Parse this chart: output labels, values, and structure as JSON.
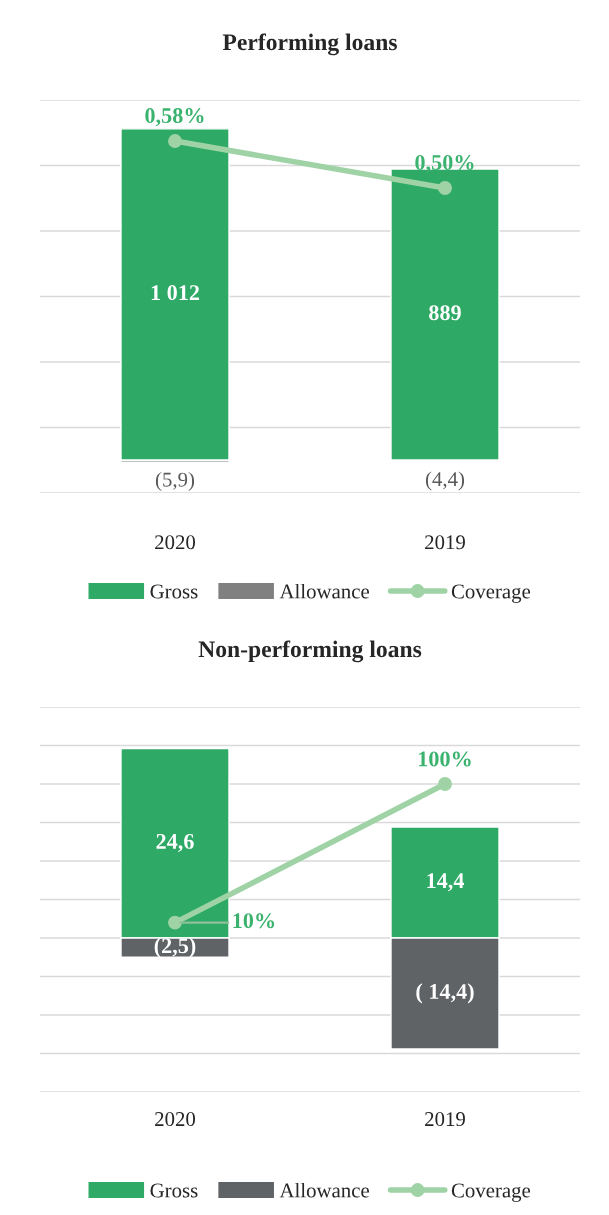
{
  "chart_data": [
    {
      "type": "bar",
      "title": "Performing loans",
      "categories": [
        "2020",
        "2019"
      ],
      "stacked": true,
      "grid": "y",
      "legend": "bottom",
      "tick_labels": "x",
      "ylim": [
        -100,
        1100
      ],
      "yticks": [
        {
          "value": -100,
          "label": null
        },
        {
          "value": 100,
          "label": null
        },
        {
          "value": 300,
          "label": null
        },
        {
          "value": 500,
          "label": null
        },
        {
          "value": 700,
          "label": null
        },
        {
          "value": 900,
          "label": null
        },
        {
          "value": 1100,
          "label": null
        }
      ],
      "y2lim": [
        -0.02,
        0.65
      ],
      "series": [
        {
          "name": "Gross",
          "color": "#2eaa66",
          "values": [
            1012,
            889
          ],
          "value_labels": [
            "1 012",
            "889"
          ]
        },
        {
          "name": "Allowance",
          "color": "#808080",
          "values": [
            -5.9,
            -4.4
          ],
          "value_labels": [
            "(5,9)",
            "(4,4)"
          ]
        },
        {
          "name": "Coverage",
          "type": "line",
          "axis": "y2",
          "marker": "circle",
          "color": "#9fd3a6",
          "values": [
            0.58,
            0.5
          ],
          "value_labels": [
            "0,58%",
            "0,50%"
          ]
        }
      ]
    },
    {
      "type": "bar",
      "title": "Non-performing loans",
      "categories": [
        "2020",
        "2019"
      ],
      "stacked": true,
      "grid": "y",
      "legend": "bottom",
      "tick_labels": "x",
      "ylim": [
        -20,
        30
      ],
      "yticks": [
        {
          "value": -20,
          "label": null
        },
        {
          "value": -15,
          "label": null
        },
        {
          "value": -10,
          "label": null
        },
        {
          "value": -5,
          "label": null
        },
        {
          "value": 0,
          "label": null
        },
        {
          "value": 5,
          "label": null
        },
        {
          "value": 10,
          "label": null
        },
        {
          "value": 15,
          "label": null
        },
        {
          "value": 20,
          "label": null
        },
        {
          "value": 25,
          "label": null
        },
        {
          "value": 30,
          "label": null
        }
      ],
      "y2lim": [
        -100,
        150
      ],
      "series": [
        {
          "name": "Gross",
          "color": "#2eaa66",
          "values": [
            24.6,
            14.4
          ],
          "value_labels": [
            "24,6",
            "14,4"
          ]
        },
        {
          "name": "Allowance",
          "color": "#5f6366",
          "values": [
            -2.5,
            -14.4
          ],
          "value_labels": [
            "(2,5)",
            "( 14,4)"
          ]
        },
        {
          "name": "Coverage",
          "type": "line",
          "axis": "y2",
          "marker": "circle",
          "color": "#9fd3a6",
          "values": [
            10,
            100
          ],
          "value_labels": [
            "10%",
            "100%"
          ]
        }
      ]
    }
  ]
}
